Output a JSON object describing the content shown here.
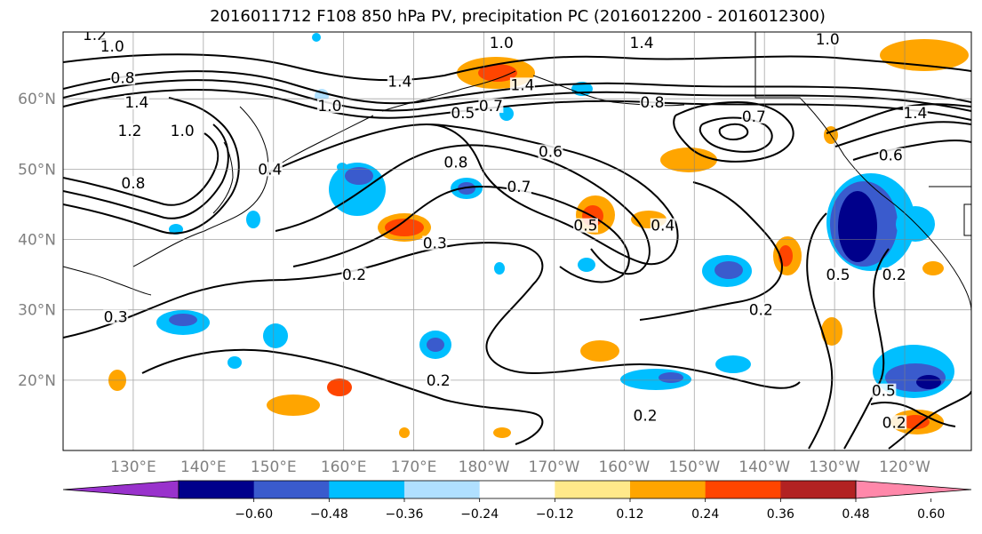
{
  "title": "2016011712 F108 850 hPa PV, precipitation PC (2016012200 - 2016012300)",
  "map": {
    "lon_labels": [
      {
        "deg": 130,
        "text": "130°E"
      },
      {
        "deg": 140,
        "text": "140°E"
      },
      {
        "deg": 150,
        "text": "150°E"
      },
      {
        "deg": 160,
        "text": "160°E"
      },
      {
        "deg": 170,
        "text": "170°E"
      },
      {
        "deg": 180,
        "text": "180°W"
      },
      {
        "deg": 190,
        "text": "170°W"
      },
      {
        "deg": 200,
        "text": "160°W"
      },
      {
        "deg": 210,
        "text": "150°W"
      },
      {
        "deg": 220,
        "text": "140°W"
      },
      {
        "deg": 230,
        "text": "130°W"
      },
      {
        "deg": 240,
        "text": "120°W"
      }
    ],
    "lat_labels": [
      {
        "deg": 60,
        "text": "60°N"
      },
      {
        "deg": 50,
        "text": "50°N"
      },
      {
        "deg": 40,
        "text": "40°N"
      },
      {
        "deg": 30,
        "text": "30°N"
      },
      {
        "deg": 20,
        "text": "20°N"
      }
    ],
    "contour_labels": [
      {
        "text": "1.2",
        "lon": 124.5,
        "lat": 68.6
      },
      {
        "text": "1.0",
        "lon": 127.0,
        "lat": 67.0
      },
      {
        "text": "0.8",
        "lon": 128.5,
        "lat": 62.5
      },
      {
        "text": "1.4",
        "lon": 130.5,
        "lat": 59.0
      },
      {
        "text": "1.2",
        "lon": 129.5,
        "lat": 55.0
      },
      {
        "text": "1.0",
        "lon": 137.0,
        "lat": 55.0
      },
      {
        "text": "0.8",
        "lon": 130.0,
        "lat": 47.5
      },
      {
        "text": "0.4",
        "lon": 149.5,
        "lat": 49.5
      },
      {
        "text": "1.4",
        "lon": 168.0,
        "lat": 62.0
      },
      {
        "text": "1.0",
        "lon": 158.0,
        "lat": 58.5
      },
      {
        "text": "1.0",
        "lon": 182.5,
        "lat": 67.5
      },
      {
        "text": "1.4",
        "lon": 185.5,
        "lat": 61.5
      },
      {
        "text": "0.5",
        "lon": 177.0,
        "lat": 57.5
      },
      {
        "text": "0.7",
        "lon": 181.0,
        "lat": 58.5
      },
      {
        "text": "1.4",
        "lon": 202.5,
        "lat": 67.5
      },
      {
        "text": "0.8",
        "lon": 204.0,
        "lat": 59.0
      },
      {
        "text": "0.7",
        "lon": 218.5,
        "lat": 57.0
      },
      {
        "text": "1.0",
        "lon": 229.0,
        "lat": 68.0
      },
      {
        "text": "1.4",
        "lon": 241.5,
        "lat": 57.5
      },
      {
        "text": "0.6",
        "lon": 238.0,
        "lat": 51.5
      },
      {
        "text": "0.8",
        "lon": 176.0,
        "lat": 50.5
      },
      {
        "text": "0.6",
        "lon": 189.5,
        "lat": 52.0
      },
      {
        "text": "0.7",
        "lon": 185.0,
        "lat": 47.0
      },
      {
        "text": "0.5",
        "lon": 194.5,
        "lat": 41.5
      },
      {
        "text": "0.4",
        "lon": 205.5,
        "lat": 41.5
      },
      {
        "text": "0.3",
        "lon": 173.0,
        "lat": 39.0
      },
      {
        "text": "0.2",
        "lon": 161.5,
        "lat": 34.5
      },
      {
        "text": "0.2",
        "lon": 219.5,
        "lat": 29.5
      },
      {
        "text": "0.3",
        "lon": 127.5,
        "lat": 28.5
      },
      {
        "text": "0.2",
        "lon": 173.5,
        "lat": 19.5
      },
      {
        "text": "0.2",
        "lon": 203.0,
        "lat": 14.5
      },
      {
        "text": "0.5",
        "lon": 230.5,
        "lat": 34.5
      },
      {
        "text": "0.2",
        "lon": 238.5,
        "lat": 34.5
      },
      {
        "text": "0.5",
        "lon": 237.0,
        "lat": 18.0
      },
      {
        "text": "0.2",
        "lon": 238.5,
        "lat": 13.5
      }
    ]
  },
  "colorbar": {
    "colors": [
      "#9932cc",
      "#00008b",
      "#3a5bcd",
      "#00bfff",
      "#b0e0ff",
      "#ffffff",
      "#ffe98a",
      "#ffa500",
      "#ff4500",
      "#b22222",
      "#ff88aa"
    ],
    "ticks": [
      "−0.60",
      "−0.48",
      "−0.36",
      "−0.24",
      "−0.12",
      "0.12",
      "0.24",
      "0.36",
      "0.48",
      "0.60"
    ]
  }
}
